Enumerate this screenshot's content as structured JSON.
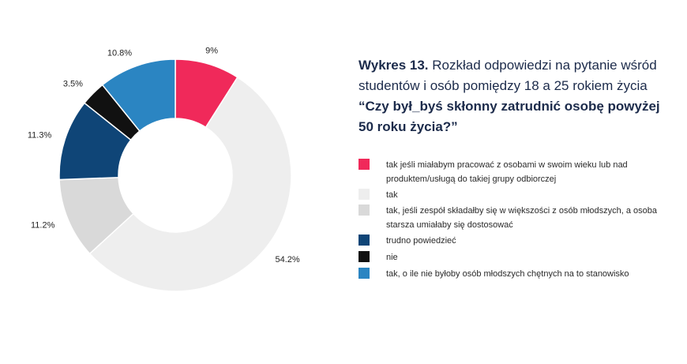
{
  "title": {
    "prefix": "Wykres 13.",
    "text": " Rozkład odpowiedzi na pytanie wśród studentów i osób pomiędzy 18 a 25 rokiem życia ",
    "question": "“Czy był_byś skłonny zatrudnić osobę powyżej 50 roku życia?”"
  },
  "chart_data": {
    "type": "pie",
    "donut": true,
    "title": "Rozkład odpowiedzi na pytanie wśród studentów i osób pomiędzy 18 a 25 rokiem życia “Czy był_byś skłonny zatrudnić osobę powyżej 50 roku życia?”",
    "legend_position": "right",
    "slices": [
      {
        "label": "tak jeśli miałabym pracować z osobami w swoim wieku lub nad produktem/usługą do takiej grupy odbiorczej",
        "value": 9.0,
        "display": "9%",
        "color": "#f0295a"
      },
      {
        "label": "tak",
        "value": 54.2,
        "display": "54.2%",
        "color": "#eeeeee"
      },
      {
        "label": "tak, jeśli zespół składałby się w większości z osób młodszych, a osoba starsza umiałaby się dostosować",
        "value": 11.2,
        "display": "11.2%",
        "color": "#d9d9d9"
      },
      {
        "label": "trudno powiedzieć",
        "value": 11.3,
        "display": "11.3%",
        "color": "#0f4577"
      },
      {
        "label": "nie",
        "value": 3.5,
        "display": "3.5%",
        "color": "#111111"
      },
      {
        "label": "tak, o ile nie byłoby osób młodszych chętnych na to stanowisko",
        "value": 10.8,
        "display": "10.8%",
        "color": "#2b85c2"
      }
    ]
  }
}
